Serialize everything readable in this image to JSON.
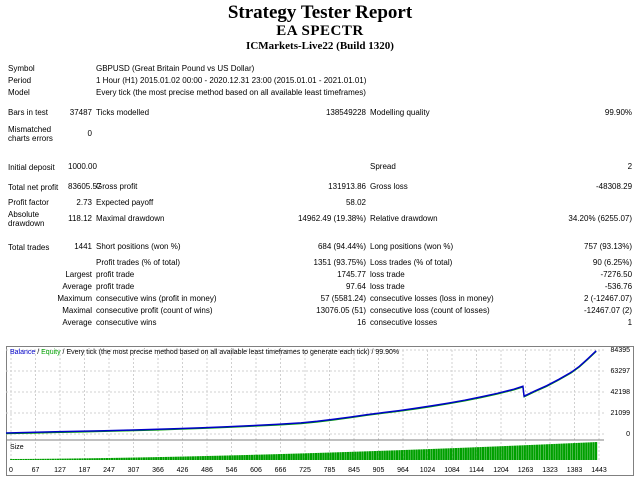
{
  "title": "Strategy Tester Report",
  "expert": "EA SPECTR",
  "server": "ICMarkets-Live22 (Build 1320)",
  "rows": {
    "symbol": {
      "label": "Symbol",
      "value": "GBPUSD (Great Britain Pound vs US Dollar)"
    },
    "period": {
      "label": "Period",
      "value": "1 Hour (H1) 2015.01.02 00:00 - 2020.12.31 23:00 (2015.01.01 - 2021.01.01)"
    },
    "model": {
      "label": "Model",
      "value": "Every tick (the most precise method based on all available least timeframes)"
    },
    "bars": {
      "label": "Bars in test",
      "value": "37487",
      "ticks_label": "Ticks modelled",
      "ticks_value": "138549228",
      "quality_label": "Modelling quality",
      "quality_value": "99.90%"
    },
    "mismatched": {
      "label": "Mismatched charts errors",
      "value": "0"
    },
    "deposit": {
      "label": "Initial deposit",
      "value": "1000.00",
      "spread_label": "Spread",
      "spread_value": "2"
    },
    "net": {
      "label": "Total net profit",
      "value": "83605.57",
      "gross_profit_label": "Gross profit",
      "gross_profit_value": "131913.86",
      "gross_loss_label": "Gross loss",
      "gross_loss_value": "-48308.29"
    },
    "pf": {
      "label": "Profit factor",
      "value": "2.73",
      "ep_label": "Expected payoff",
      "ep_value": "58.02"
    },
    "dd": {
      "label": "Absolute drawdown",
      "value": "118.12",
      "max_label": "Maximal drawdown",
      "max_value": "14962.49 (19.38%)",
      "rel_label": "Relative drawdown",
      "rel_value": "34.20% (6255.07)"
    },
    "trades": {
      "label": "Total trades",
      "value": "1441",
      "short_label": "Short positions (won %)",
      "short_value": "684 (94.44%)",
      "long_label": "Long positions (won %)",
      "long_value": "757 (93.13%)"
    },
    "pt": {
      "label": "Profit trades (% of total)",
      "value": "1351 (93.75%)",
      "lt_label": "Loss trades (% of total)",
      "lt_value": "90 (6.25%)"
    },
    "largest": {
      "label": "Largest",
      "pl": "profit trade",
      "pv": "1745.77",
      "ll": "loss trade",
      "lv": "-7276.50"
    },
    "average": {
      "label": "Average",
      "pl": "profit trade",
      "pv": "97.64",
      "ll": "loss trade",
      "lv": "-536.76"
    },
    "max_cons": {
      "label": "Maximum",
      "pl": "consecutive wins (profit in money)",
      "pv": "57 (5581.24)",
      "ll": "consecutive losses (loss in money)",
      "lv": "2 (-12467.07)"
    },
    "maximal_cons": {
      "label": "Maximal",
      "pl": "consecutive profit (count of wins)",
      "pv": "13076.05 (51)",
      "ll": "consecutive loss (count of losses)",
      "lv": "-12467.07 (2)"
    },
    "avg_cons": {
      "label": "Average",
      "pl": "consecutive wins",
      "pv": "16",
      "ll": "consecutive losses",
      "lv": "1"
    }
  },
  "chart_data": {
    "type": "line",
    "legend": {
      "balance": "Balance",
      "sep": " / ",
      "equity": "Equity",
      "desc": " / Every tick (the most precise method based on all available least timeframes to generate each tick) / 99.90%"
    },
    "size_label": "Size",
    "ylim": [
      0,
      84395
    ],
    "y_ticks": [
      "84395",
      "63297",
      "42198",
      "21099",
      "0"
    ],
    "x_ticks": [
      "0",
      "67",
      "127",
      "187",
      "247",
      "307",
      "366",
      "426",
      "486",
      "546",
      "606",
      "666",
      "725",
      "785",
      "845",
      "905",
      "964",
      "1024",
      "1084",
      "1144",
      "1204",
      "1263",
      "1323",
      "1383",
      "1443"
    ],
    "xlim": [
      0,
      1460
    ],
    "series": [
      {
        "x": [
          0,
          60,
          120,
          180,
          240,
          300,
          360,
          420,
          480,
          540,
          600,
          660,
          700,
          720,
          760,
          800,
          840,
          880,
          920,
          960,
          1000,
          1040,
          1080,
          1120,
          1160,
          1200,
          1240,
          1262,
          1265,
          1290,
          1320,
          1350,
          1380,
          1400,
          1420,
          1441
        ],
        "y": [
          1000,
          1600,
          2200,
          2700,
          3300,
          3900,
          4600,
          5400,
          6300,
          7300,
          8400,
          9600,
          10600,
          11200,
          12800,
          14800,
          17000,
          19400,
          21500,
          23500,
          25800,
          28300,
          31000,
          34000,
          37300,
          40900,
          45000,
          47900,
          38000,
          43000,
          48500,
          55000,
          62000,
          68000,
          75500,
          83605
        ]
      }
    ]
  },
  "colors": {
    "balance": "#0000c8",
    "equity": "#00a000",
    "size": "#00a000"
  }
}
